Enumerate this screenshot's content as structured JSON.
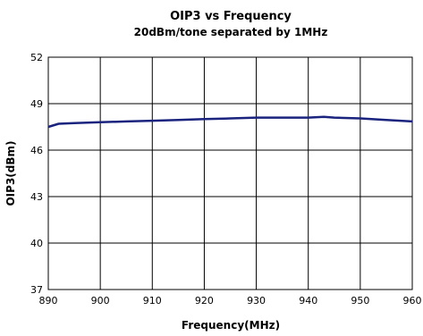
{
  "chart_data": {
    "type": "line",
    "title": "OIP3 vs Frequency",
    "subtitle": "20dBm/tone separated by 1MHz",
    "xlabel": "Frequency(MHz)",
    "ylabel": "OIP3(dBm)",
    "xlim": [
      890,
      960
    ],
    "ylim": [
      37,
      52
    ],
    "xticks": [
      890,
      900,
      910,
      920,
      930,
      940,
      950,
      960
    ],
    "yticks": [
      37,
      40,
      43,
      46,
      49,
      52
    ],
    "grid": true,
    "legend": "none",
    "series": [
      {
        "color": "#1a237e",
        "x": [
          890,
          892,
          895,
          900,
          905,
          910,
          915,
          920,
          925,
          930,
          935,
          940,
          943,
          945,
          950,
          955,
          960
        ],
        "y": [
          47.5,
          47.7,
          47.75,
          47.8,
          47.85,
          47.9,
          47.95,
          48.0,
          48.05,
          48.1,
          48.1,
          48.1,
          48.15,
          48.1,
          48.05,
          47.95,
          47.85
        ]
      }
    ]
  }
}
